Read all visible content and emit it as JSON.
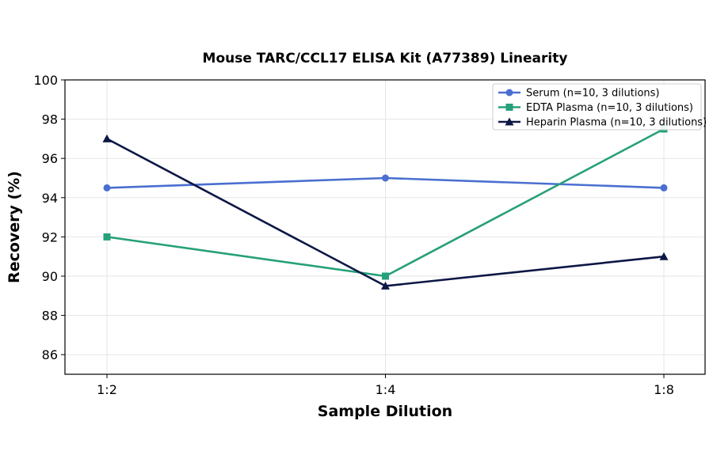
{
  "chart_data": {
    "type": "line",
    "title": "Mouse TARC/CCL17 ELISA Kit (A77389) Linearity",
    "xlabel": "Sample Dilution",
    "ylabel": "Recovery (%)",
    "categories": [
      "1:2",
      "1:4",
      "1:8"
    ],
    "ylim": [
      85,
      100
    ],
    "yticks": [
      86,
      88,
      90,
      92,
      94,
      96,
      98,
      100
    ],
    "grid": true,
    "legend_position": "top-right",
    "series": [
      {
        "name": "Serum (n=10, 3 dilutions)",
        "values": [
          94.5,
          95.0,
          94.5
        ],
        "color": "#4a6fd0",
        "marker": "circle"
      },
      {
        "name": "EDTA Plasma (n=10, 3 dilutions)",
        "values": [
          92.0,
          90.0,
          97.5
        ],
        "color": "#26a07a",
        "marker": "square"
      },
      {
        "name": "Heparin Plasma (n=10, 3 dilutions)",
        "values": [
          97.0,
          89.5,
          91.0
        ],
        "color": "#0c1745",
        "marker": "triangle"
      }
    ]
  }
}
